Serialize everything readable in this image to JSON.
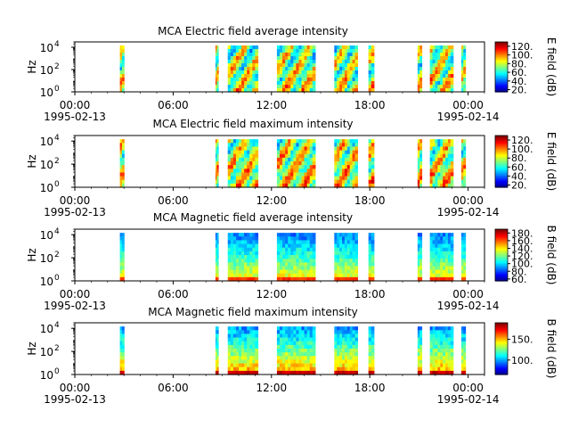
{
  "figure": {
    "background": "#ffffff",
    "colormap": "jet"
  },
  "chart_data": [
    {
      "type": "heatmap",
      "title": "MCA  Electric field average intensity",
      "ylabel": "Hz",
      "yscale": "log",
      "yticks": [
        "10",
        "10",
        "10"
      ],
      "yticks_exp": [
        "0",
        "2",
        "4"
      ],
      "ylim": [
        1,
        30000
      ],
      "xlim": [
        "1995-02-13T00:00",
        "1995-02-14T01:00"
      ],
      "xticks": [
        "00:00",
        "06:00",
        "12:00",
        "18:00",
        "00:00"
      ],
      "date_labels": [
        "1995-02-13",
        "1995-02-14"
      ],
      "colorbar": {
        "label": "E field (dB)",
        "ticks": [
          "20.",
          "40.",
          "60.",
          "80.",
          "100.",
          "120."
        ],
        "range": [
          15,
          130
        ]
      },
      "data_intervals": [
        [
          "02:45",
          "03:00"
        ],
        [
          "08:35",
          "08:45"
        ],
        [
          "09:20",
          "11:10"
        ],
        [
          "12:20",
          "14:40"
        ],
        [
          "15:50",
          "17:15"
        ],
        [
          "17:55",
          "18:15"
        ],
        [
          "20:55",
          "21:10"
        ],
        [
          "21:40",
          "23:05"
        ],
        [
          "23:35",
          "23:50"
        ]
      ],
      "intensity_range_db": [
        25,
        120
      ]
    },
    {
      "type": "heatmap",
      "title": "MCA  Electric field maximum intensity",
      "ylabel": "Hz",
      "yscale": "log",
      "yticks": [
        "10",
        "10",
        "10"
      ],
      "yticks_exp": [
        "0",
        "2",
        "4"
      ],
      "ylim": [
        1,
        30000
      ],
      "xlim": [
        "1995-02-13T00:00",
        "1995-02-14T01:00"
      ],
      "xticks": [
        "00:00",
        "06:00",
        "12:00",
        "18:00",
        "00:00"
      ],
      "date_labels": [
        "1995-02-13",
        "1995-02-14"
      ],
      "colorbar": {
        "label": "E field (dB)",
        "ticks": [
          "20.",
          "40.",
          "60.",
          "80.",
          "100.",
          "120."
        ],
        "range": [
          15,
          130
        ]
      },
      "data_intervals": [
        [
          "02:45",
          "03:00"
        ],
        [
          "08:35",
          "08:45"
        ],
        [
          "09:20",
          "11:10"
        ],
        [
          "12:20",
          "14:40"
        ],
        [
          "15:50",
          "17:15"
        ],
        [
          "17:55",
          "18:15"
        ],
        [
          "20:55",
          "21:10"
        ],
        [
          "21:40",
          "23:05"
        ],
        [
          "23:35",
          "23:50"
        ]
      ],
      "intensity_range_db": [
        30,
        125
      ]
    },
    {
      "type": "heatmap",
      "title": "MCA  Magnetic field average intensity",
      "ylabel": "Hz",
      "yscale": "log",
      "yticks": [
        "10",
        "10",
        "10"
      ],
      "yticks_exp": [
        "0",
        "2",
        "4"
      ],
      "ylim": [
        1,
        30000
      ],
      "xlim": [
        "1995-02-13T00:00",
        "1995-02-14T01:00"
      ],
      "xticks": [
        "00:00",
        "06:00",
        "12:00",
        "18:00",
        "00:00"
      ],
      "date_labels": [
        "1995-02-13",
        "1995-02-14"
      ],
      "colorbar": {
        "label": "B field (dB)",
        "ticks": [
          "60.",
          "80.",
          "100.",
          "120.",
          "140.",
          "160.",
          "180."
        ],
        "range": [
          55,
          190
        ]
      },
      "data_intervals": [
        [
          "02:45",
          "03:00"
        ],
        [
          "08:35",
          "08:45"
        ],
        [
          "09:20",
          "11:10"
        ],
        [
          "12:20",
          "14:40"
        ],
        [
          "15:50",
          "17:15"
        ],
        [
          "17:55",
          "18:15"
        ],
        [
          "20:55",
          "21:10"
        ],
        [
          "21:40",
          "23:05"
        ],
        [
          "23:35",
          "23:50"
        ]
      ],
      "intensity_range_db": [
        60,
        170
      ]
    },
    {
      "type": "heatmap",
      "title": "MCA  Magnetic field maximum intensity",
      "ylabel": "Hz",
      "yscale": "log",
      "yticks": [
        "10",
        "10",
        "10"
      ],
      "yticks_exp": [
        "0",
        "2",
        "4"
      ],
      "ylim": [
        1,
        30000
      ],
      "xlim": [
        "1995-02-13T00:00",
        "1995-02-14T01:00"
      ],
      "xticks": [
        "00:00",
        "06:00",
        "12:00",
        "18:00",
        "00:00"
      ],
      "date_labels": [
        "1995-02-13",
        "1995-02-14"
      ],
      "colorbar": {
        "label": "B field (dB)",
        "ticks": [
          "100.",
          "150."
        ],
        "range": [
          65,
          190
        ]
      },
      "data_intervals": [
        [
          "02:45",
          "03:00"
        ],
        [
          "08:35",
          "08:45"
        ],
        [
          "09:20",
          "11:10"
        ],
        [
          "12:20",
          "14:40"
        ],
        [
          "15:50",
          "17:15"
        ],
        [
          "17:55",
          "18:15"
        ],
        [
          "20:55",
          "21:10"
        ],
        [
          "21:40",
          "23:05"
        ],
        [
          "23:35",
          "23:50"
        ]
      ],
      "intensity_range_db": [
        70,
        185
      ]
    }
  ]
}
